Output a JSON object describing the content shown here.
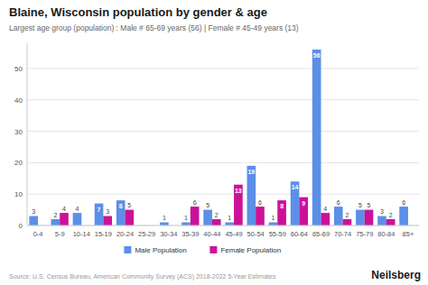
{
  "chart_data": {
    "type": "bar",
    "title": "Blaine, Wisconsin population by gender & age",
    "subtitle": "Largest age group (population) : Male # 65-69 years (56) | Female # 45-49 years (13)",
    "annotations": [
      "Source: U.S. Census Bureau, American Community Survey (ACS) 2018-2022 5-Year Estimates",
      "Neilsberg"
    ],
    "categories": [
      "0-4",
      "5-9",
      "10-14",
      "15-19",
      "20-24",
      "25-29",
      "30-34",
      "35-39",
      "40-44",
      "45-49",
      "50-54",
      "55-59",
      "60-64",
      "65-69",
      "70-74",
      "75-79",
      "80-84",
      "85+"
    ],
    "series": [
      {
        "name": "Male Population",
        "color": "#5B8FE8",
        "values": [
          3,
          2,
          4,
          7,
          8,
          0,
          1,
          1,
          5,
          1,
          19,
          1,
          14,
          56,
          6,
          5,
          3,
          6
        ]
      },
      {
        "name": "Female Population",
        "color": "#CC1199",
        "values": [
          0,
          4,
          0,
          3,
          5,
          0,
          0,
          6,
          2,
          13,
          6,
          8,
          9,
          4,
          2,
          5,
          2,
          0
        ]
      }
    ],
    "ylim": [
      0,
      58
    ],
    "yticks": [
      0,
      10,
      20,
      30,
      40,
      50
    ],
    "grid": true,
    "legend": "bottom",
    "data_labels": true
  }
}
